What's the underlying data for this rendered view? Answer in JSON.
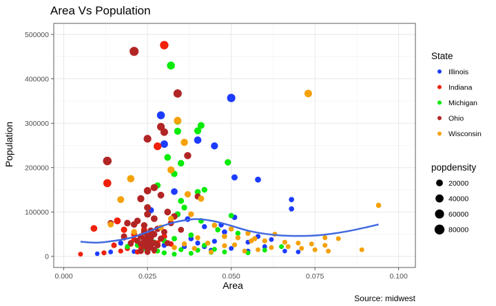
{
  "chart_data": {
    "type": "scatter",
    "title": "Area Vs Population",
    "xlabel": "Area",
    "ylabel": "Population",
    "caption": "Source: midwest",
    "xlim": [
      -0.003,
      0.105
    ],
    "ylim": [
      -25000,
      525000
    ],
    "x_ticks": [
      0.0,
      0.025,
      0.05,
      0.075,
      0.1
    ],
    "x_tick_labels": [
      "0.000",
      "0.025",
      "0.050",
      "0.075",
      "0.100"
    ],
    "y_ticks": [
      0,
      100000,
      200000,
      300000,
      400000,
      500000
    ],
    "y_tick_labels": [
      "0",
      "100000",
      "200000",
      "300000",
      "400000",
      "500000"
    ],
    "grid": true,
    "legend": {
      "placement": "right",
      "color_title": "State",
      "size_title": "popdensity",
      "size_entries": [
        {
          "label": "20000",
          "value": 20000
        },
        {
          "label": "40000",
          "value": 40000
        },
        {
          "label": "60000",
          "value": 60000
        },
        {
          "label": "80000",
          "value": 80000
        }
      ]
    },
    "series": [
      {
        "name": "Illinois",
        "color": "#1c3cff",
        "points": [
          [
            0.05,
            357000,
            45000
          ],
          [
            0.029,
            318000,
            38000
          ],
          [
            0.04,
            262000,
            28000
          ],
          [
            0.045,
            249000,
            25000
          ],
          [
            0.03,
            253000,
            30000
          ],
          [
            0.058,
            173000,
            12000
          ],
          [
            0.051,
            178000,
            14000
          ],
          [
            0.068,
            128000,
            6000
          ],
          [
            0.068,
            107000,
            6000
          ],
          [
            0.051,
            88000,
            7000
          ],
          [
            0.037,
            84000,
            9000
          ],
          [
            0.034,
            95000,
            11000
          ],
          [
            0.042,
            67000,
            5000
          ],
          [
            0.047,
            71000,
            5000
          ],
          [
            0.062,
            38000,
            3000
          ],
          [
            0.055,
            32000,
            3000
          ],
          [
            0.045,
            34000,
            4000
          ],
          [
            0.04,
            30000,
            4000
          ],
          [
            0.06,
            22000,
            3000
          ],
          [
            0.066,
            12000,
            2000
          ],
          [
            0.07,
            10000,
            2000
          ],
          [
            0.05,
            18000,
            3000
          ],
          [
            0.036,
            22000,
            4000
          ],
          [
            0.03,
            25000,
            5000
          ],
          [
            0.025,
            15000,
            4000
          ],
          [
            0.021,
            11000,
            3000
          ],
          [
            0.017,
            30000,
            5000
          ],
          [
            0.014,
            10000,
            3000
          ],
          [
            0.012,
            8000,
            3000
          ],
          [
            0.01,
            6000,
            2000
          ],
          [
            0.044,
            14000,
            3000
          ],
          [
            0.055,
            12000,
            3000
          ],
          [
            0.048,
            55000,
            6000
          ],
          [
            0.038,
            40000,
            6000
          ],
          [
            0.033,
            146000,
            19000
          ],
          [
            0.026,
            104000,
            14000
          ],
          [
            0.022,
            32000,
            5000
          ],
          [
            0.019,
            18000,
            4000
          ],
          [
            0.058,
            45000,
            4000
          ],
          [
            0.042,
            22000,
            4000
          ]
        ]
      },
      {
        "name": "Indiana",
        "color": "#f0200a",
        "points": [
          [
            0.03,
            476000,
            48000
          ],
          [
            0.028,
            248000,
            35000
          ],
          [
            0.013,
            165000,
            40000
          ],
          [
            0.009,
            63000,
            20000
          ],
          [
            0.016,
            80000,
            22000
          ],
          [
            0.018,
            60000,
            15000
          ],
          [
            0.021,
            50000,
            12000
          ],
          [
            0.024,
            40000,
            12000
          ],
          [
            0.026,
            35000,
            10000
          ],
          [
            0.028,
            30000,
            9000
          ],
          [
            0.02,
            28000,
            9000
          ],
          [
            0.015,
            25000,
            8000
          ],
          [
            0.023,
            20000,
            7000
          ],
          [
            0.025,
            15000,
            6000
          ],
          [
            0.027,
            12000,
            5000
          ],
          [
            0.019,
            18000,
            6000
          ],
          [
            0.022,
            10000,
            5000
          ],
          [
            0.017,
            12000,
            4000
          ],
          [
            0.012,
            8000,
            4000
          ],
          [
            0.005,
            5000,
            3000
          ],
          [
            0.024,
            60000,
            14000
          ],
          [
            0.03,
            45000,
            10000
          ],
          [
            0.032,
            28000,
            7000
          ],
          [
            0.026,
            50000,
            10000
          ],
          [
            0.021,
            38000,
            9000
          ],
          [
            0.018,
            42000,
            9000
          ]
        ]
      },
      {
        "name": "Michigan",
        "color": "#08eb08",
        "points": [
          [
            0.032,
            430000,
            38000
          ],
          [
            0.034,
            305000,
            28000
          ],
          [
            0.041,
            295000,
            22000
          ],
          [
            0.034,
            282000,
            24000
          ],
          [
            0.04,
            283000,
            24000
          ],
          [
            0.031,
            223000,
            20000
          ],
          [
            0.035,
            210000,
            18000
          ],
          [
            0.049,
            212000,
            16000
          ],
          [
            0.033,
            186000,
            16000
          ],
          [
            0.028,
            160000,
            14000
          ],
          [
            0.04,
            145000,
            12000
          ],
          [
            0.042,
            150000,
            10000
          ],
          [
            0.035,
            125000,
            12000
          ],
          [
            0.036,
            110000,
            10000
          ],
          [
            0.034,
            95000,
            9000
          ],
          [
            0.05,
            92000,
            6000
          ],
          [
            0.041,
            80000,
            8000
          ],
          [
            0.046,
            60000,
            6000
          ],
          [
            0.052,
            52000,
            5000
          ],
          [
            0.038,
            48000,
            6000
          ],
          [
            0.033,
            40000,
            7000
          ],
          [
            0.03,
            35000,
            6000
          ],
          [
            0.027,
            32000,
            6000
          ],
          [
            0.025,
            28000,
            6000
          ],
          [
            0.022,
            25000,
            5000
          ],
          [
            0.019,
            22000,
            5000
          ],
          [
            0.024,
            18000,
            5000
          ],
          [
            0.028,
            12000,
            4000
          ],
          [
            0.035,
            15000,
            4000
          ],
          [
            0.04,
            14000,
            4000
          ],
          [
            0.045,
            16000,
            3000
          ],
          [
            0.048,
            10000,
            3000
          ],
          [
            0.055,
            8000,
            3000
          ],
          [
            0.06,
            14000,
            3000
          ],
          [
            0.065,
            22000,
            3000
          ],
          [
            0.03,
            8000,
            4000
          ],
          [
            0.033,
            5000,
            3000
          ],
          [
            0.038,
            7000,
            3000
          ],
          [
            0.042,
            25000,
            4000
          ],
          [
            0.044,
            9000,
            3000
          ]
        ]
      },
      {
        "name": "Ohio",
        "color": "#b22525",
        "points": [
          [
            0.021,
            462000,
            60000
          ],
          [
            0.034,
            367000,
            45000
          ],
          [
            0.013,
            215000,
            50000
          ],
          [
            0.025,
            265000,
            35000
          ],
          [
            0.029,
            292000,
            34000
          ],
          [
            0.03,
            280000,
            32000
          ],
          [
            0.037,
            227000,
            26000
          ],
          [
            0.025,
            148000,
            28000
          ],
          [
            0.027,
            155000,
            26000
          ],
          [
            0.023,
            130000,
            25000
          ],
          [
            0.025,
            110000,
            22000
          ],
          [
            0.025,
            95000,
            22000
          ],
          [
            0.031,
            100000,
            20000
          ],
          [
            0.033,
            90000,
            18000
          ],
          [
            0.027,
            85000,
            20000
          ],
          [
            0.022,
            80000,
            18000
          ],
          [
            0.019,
            75000,
            18000
          ],
          [
            0.021,
            72000,
            18000
          ],
          [
            0.024,
            70000,
            17000
          ],
          [
            0.028,
            62000,
            16000
          ],
          [
            0.026,
            58000,
            16000
          ],
          [
            0.024,
            55000,
            16000
          ],
          [
            0.027,
            50000,
            15000
          ],
          [
            0.025,
            46000,
            15000
          ],
          [
            0.023,
            45000,
            15000
          ],
          [
            0.026,
            42000,
            15000
          ],
          [
            0.025,
            38000,
            15000
          ],
          [
            0.024,
            35000,
            15000
          ],
          [
            0.026,
            33000,
            14000
          ],
          [
            0.027,
            30000,
            14000
          ],
          [
            0.023,
            28000,
            14000
          ],
          [
            0.025,
            26000,
            14000
          ],
          [
            0.024,
            23000,
            14000
          ],
          [
            0.026,
            20000,
            13000
          ],
          [
            0.025,
            18000,
            13000
          ],
          [
            0.027,
            15000,
            12000
          ],
          [
            0.023,
            12000,
            12000
          ],
          [
            0.025,
            10000,
            12000
          ],
          [
            0.028,
            25000,
            13000
          ],
          [
            0.022,
            35000,
            14000
          ],
          [
            0.029,
            40000,
            14000
          ],
          [
            0.03,
            55000,
            14000
          ],
          [
            0.031,
            30000,
            12000
          ],
          [
            0.032,
            75000,
            14000
          ],
          [
            0.035,
            60000,
            12000
          ],
          [
            0.014,
            75000,
            14000
          ],
          [
            0.018,
            45000,
            14000
          ],
          [
            0.02,
            30000,
            13000
          ],
          [
            0.029,
            138000,
            20000
          ],
          [
            0.04,
            135000,
            14000
          ]
        ]
      },
      {
        "name": "Wisconsin",
        "color": "#f5a10a",
        "points": [
          [
            0.073,
            367000,
            32000
          ],
          [
            0.034,
            306000,
            30000
          ],
          [
            0.036,
            257000,
            26000
          ],
          [
            0.032,
            195000,
            24000
          ],
          [
            0.02,
            175000,
            28000
          ],
          [
            0.017,
            128000,
            22000
          ],
          [
            0.094,
            115000,
            6000
          ],
          [
            0.037,
            140000,
            16000
          ],
          [
            0.041,
            130000,
            14000
          ],
          [
            0.038,
            95000,
            10000
          ],
          [
            0.032,
            85000,
            9000
          ],
          [
            0.045,
            70000,
            7000
          ],
          [
            0.05,
            62000,
            6000
          ],
          [
            0.055,
            52000,
            5000
          ],
          [
            0.063,
            50000,
            4000
          ],
          [
            0.048,
            45000,
            6000
          ],
          [
            0.052,
            42000,
            5000
          ],
          [
            0.057,
            40000,
            5000
          ],
          [
            0.06,
            35000,
            4000
          ],
          [
            0.066,
            32000,
            4000
          ],
          [
            0.07,
            30000,
            3000
          ],
          [
            0.074,
            28000,
            3000
          ],
          [
            0.078,
            25000,
            3000
          ],
          [
            0.082,
            40000,
            3000
          ],
          [
            0.078,
            42000,
            3000
          ],
          [
            0.075,
            15000,
            3000
          ],
          [
            0.079,
            12000,
            3000
          ],
          [
            0.089,
            15000,
            3000
          ],
          [
            0.071,
            18000,
            3000
          ],
          [
            0.067,
            22000,
            3000
          ],
          [
            0.062,
            20000,
            3000
          ],
          [
            0.058,
            15000,
            3000
          ],
          [
            0.054,
            12000,
            3000
          ],
          [
            0.048,
            24000,
            4000
          ],
          [
            0.043,
            30000,
            4000
          ],
          [
            0.04,
            42000,
            5000
          ],
          [
            0.036,
            28000,
            5000
          ],
          [
            0.033,
            20000,
            5000
          ],
          [
            0.039,
            18000,
            4000
          ],
          [
            0.044,
            10000,
            3000
          ],
          [
            0.051,
            26000,
            4000
          ],
          [
            0.056,
            35000,
            4000
          ],
          [
            0.029,
            65000,
            10000
          ],
          [
            0.014,
            72000,
            12000
          ],
          [
            0.021,
            55000,
            10000
          ]
        ]
      }
    ],
    "smooth_line": {
      "color": "#4169e1",
      "x": [
        0.005,
        0.01,
        0.015,
        0.02,
        0.025,
        0.03,
        0.035,
        0.04,
        0.045,
        0.05,
        0.055,
        0.06,
        0.065,
        0.07,
        0.075,
        0.08,
        0.085,
        0.09,
        0.094
      ],
      "y": [
        33000,
        31000,
        35000,
        42000,
        55000,
        70000,
        80000,
        84000,
        79000,
        69000,
        58000,
        51000,
        47000,
        46000,
        47000,
        51000,
        57000,
        65000,
        72000
      ]
    }
  }
}
